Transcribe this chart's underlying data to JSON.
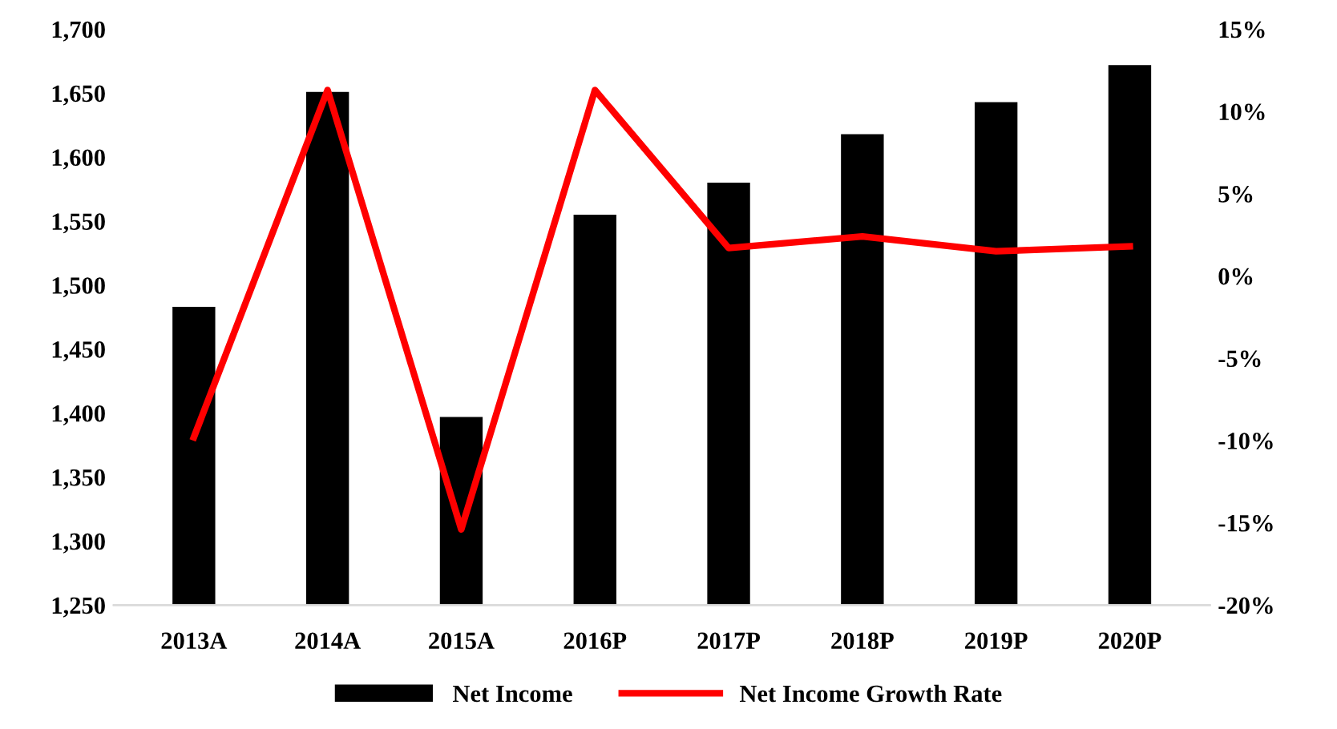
{
  "chart_data": {
    "type": "bar",
    "categories": [
      "2013A",
      "2014A",
      "2015A",
      "2016P",
      "2017P",
      "2018P",
      "2019P",
      "2020P"
    ],
    "series": [
      {
        "name": "Net Income",
        "color": "#000000",
        "values": [
          1483,
          1651,
          1397,
          1555,
          1580,
          1618,
          1643,
          1672
        ]
      },
      {
        "name": "Net Income Growth Rate",
        "type": "line",
        "axis": "y2",
        "color": "#ff0000",
        "values": [
          -9.8,
          11.3,
          -15.4,
          11.3,
          1.7,
          2.4,
          1.5,
          1.8
        ]
      }
    ],
    "ylim": [
      1250,
      1700
    ],
    "yticks": [
      {
        "value": 1250,
        "label": "1,250"
      },
      {
        "value": 1300,
        "label": "1,300"
      },
      {
        "value": 1350,
        "label": "1,350"
      },
      {
        "value": 1400,
        "label": "1,400"
      },
      {
        "value": 1450,
        "label": "1,450"
      },
      {
        "value": 1500,
        "label": "1,500"
      },
      {
        "value": 1550,
        "label": "1,550"
      },
      {
        "value": 1600,
        "label": "1,600"
      },
      {
        "value": 1650,
        "label": "1,650"
      },
      {
        "value": 1700,
        "label": "1,700"
      }
    ],
    "y2lim": [
      -20,
      15
    ],
    "y2ticks": [
      {
        "value": -20,
        "label": "-20%"
      },
      {
        "value": -15,
        "label": "-15%"
      },
      {
        "value": -10,
        "label": "-10%"
      },
      {
        "value": -5,
        "label": "-5%"
      },
      {
        "value": 0,
        "label": "0%"
      },
      {
        "value": 5,
        "label": "5%"
      },
      {
        "value": 10,
        "label": "10%"
      },
      {
        "value": 15,
        "label": "15%"
      }
    ],
    "grid": false,
    "legend": "bottom",
    "marker": "none",
    "line_style": "solid"
  }
}
